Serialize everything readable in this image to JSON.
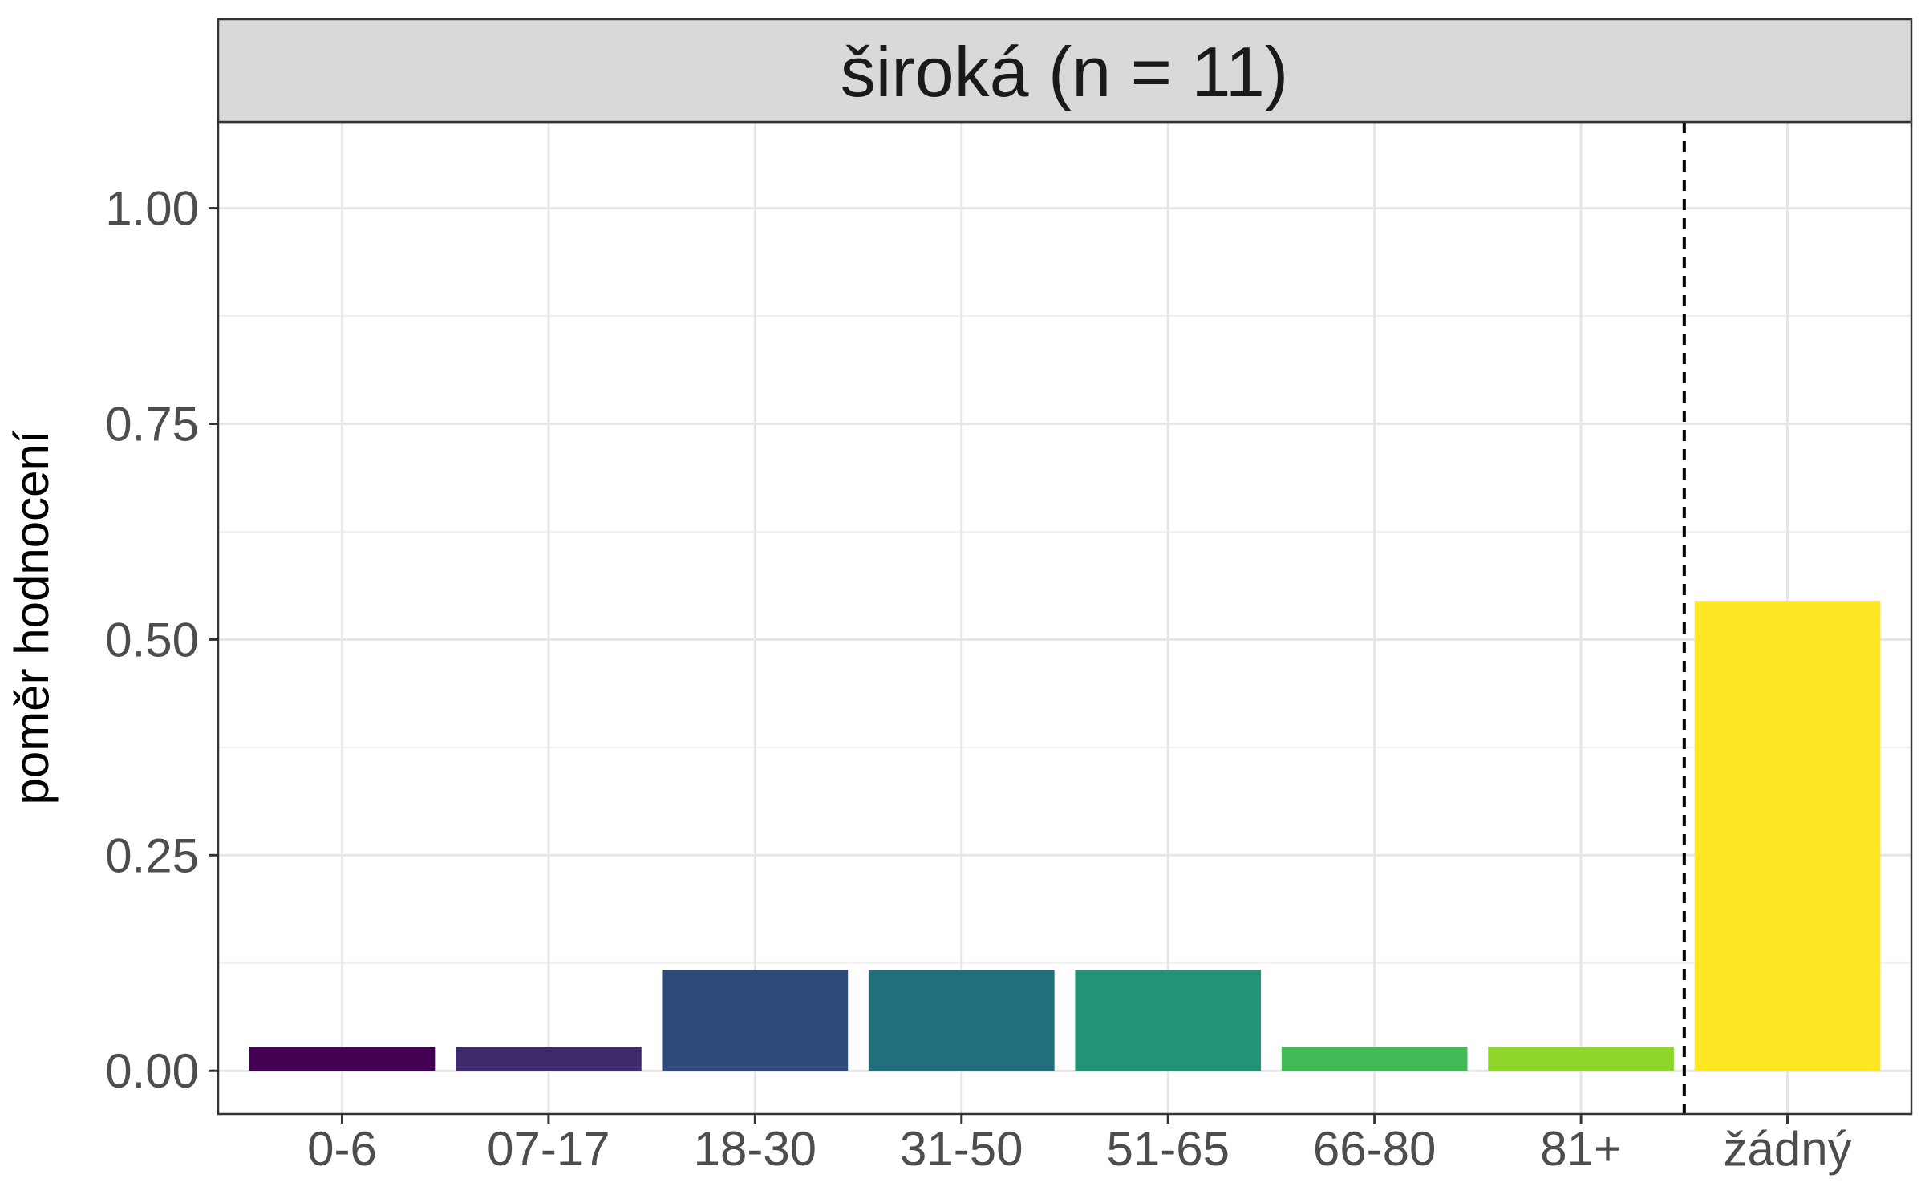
{
  "chart_data": {
    "type": "bar",
    "facet_title": "široká (n = 11)",
    "ylabel": "poměr hodnocení",
    "xlabel": "",
    "categories": [
      "0-6",
      "07-17",
      "18-30",
      "31-50",
      "51-65",
      "66-80",
      "81+",
      "žádný"
    ],
    "values": [
      0.028,
      0.028,
      0.117,
      0.117,
      0.117,
      0.028,
      0.028,
      0.545
    ],
    "colors": [
      "#440154",
      "#3F2A6E",
      "#2D4A7B",
      "#216E7C",
      "#229377",
      "#42BB57",
      "#8FD62C",
      "#FDE725"
    ],
    "ylim": [
      -0.05,
      1.1
    ],
    "y_ticks": [
      0.0,
      0.25,
      0.5,
      0.75,
      1.0
    ],
    "y_tick_labels": [
      "0.00",
      "0.25",
      "0.50",
      "0.75",
      "1.00"
    ],
    "reference_line": {
      "between_categories": [
        "81+",
        "žádný"
      ],
      "style": "dashed",
      "color": "#000000"
    },
    "grid": true,
    "legend": "none"
  }
}
